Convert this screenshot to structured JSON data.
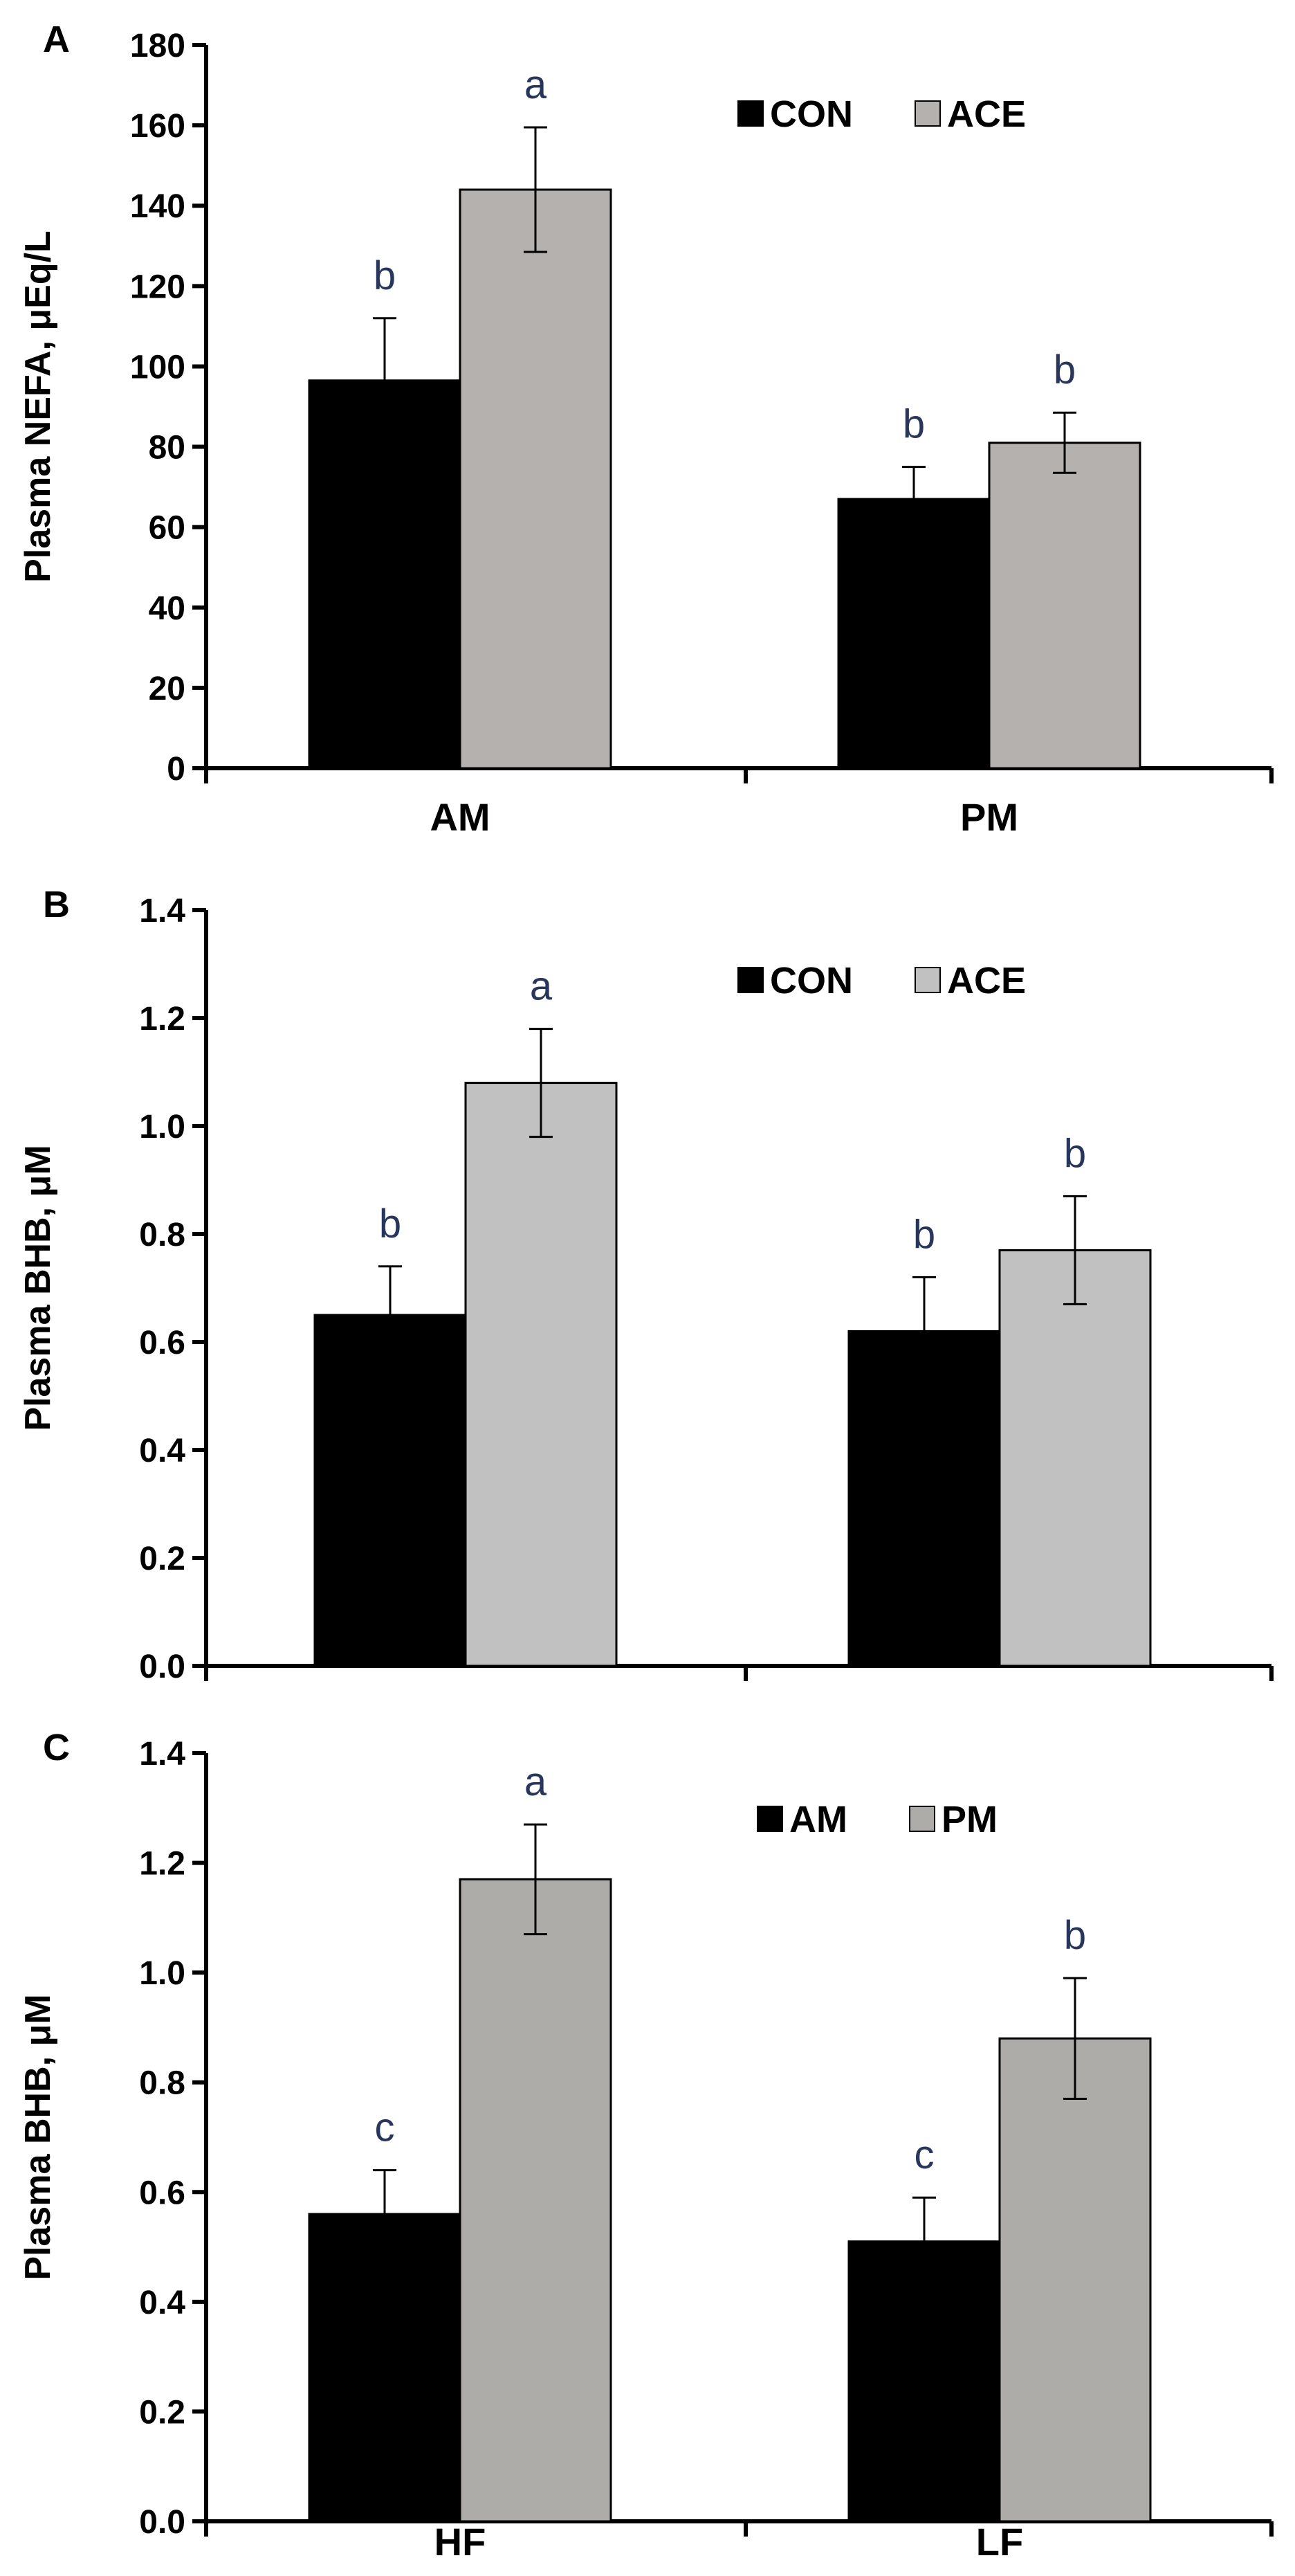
{
  "chart_data": [
    {
      "type": "bar",
      "panel": "A",
      "ylabel": "Plasma NEFA, μEq/L",
      "ylim": [
        0,
        180
      ],
      "yticks": [
        0,
        20,
        40,
        60,
        80,
        100,
        120,
        140,
        160,
        180
      ],
      "ytick_labels": [
        "0",
        "20",
        "40",
        "60",
        "80",
        "100",
        "120",
        "140",
        "160",
        "180"
      ],
      "categories": [
        "AM",
        "PM"
      ],
      "show_categories": true,
      "series": [
        {
          "name": "CON",
          "color": "#000000",
          "values": [
            96.5,
            67
          ],
          "errors": [
            15.5,
            8
          ],
          "labels": [
            "b",
            "b"
          ]
        },
        {
          "name": "ACE",
          "color": "#b4b1ae",
          "values": [
            144,
            81
          ],
          "errors": [
            15.5,
            7.5
          ],
          "labels": [
            "a",
            "b"
          ]
        }
      ],
      "legend": "top-right",
      "grid": false
    },
    {
      "type": "bar",
      "panel": "B",
      "ylabel": "Plasma BHB, μM",
      "ylim": [
        0,
        1.4
      ],
      "yticks": [
        0,
        0.2,
        0.4,
        0.6,
        0.8,
        1.0,
        1.2,
        1.4
      ],
      "ytick_labels": [
        "0.0",
        "0.2",
        "0.4",
        "0.6",
        "0.8",
        "1.0",
        "1.2",
        "1.4"
      ],
      "categories": [
        "",
        ""
      ],
      "show_categories": false,
      "series": [
        {
          "name": "CON",
          "color": "#000000",
          "values": [
            0.65,
            0.62
          ],
          "errors": [
            0.09,
            0.1
          ],
          "labels": [
            "b",
            "b"
          ]
        },
        {
          "name": "ACE",
          "color": "#c1c1c1",
          "values": [
            1.08,
            0.77
          ],
          "errors": [
            0.1,
            0.1
          ],
          "labels": [
            "a",
            "b"
          ]
        }
      ],
      "legend": "top-right",
      "grid": false
    },
    {
      "type": "bar",
      "panel": "C",
      "ylabel": "Plasma BHB, μM",
      "ylim": [
        0,
        1.4
      ],
      "yticks": [
        0,
        0.2,
        0.4,
        0.6,
        0.8,
        1.0,
        1.2,
        1.4
      ],
      "ytick_labels": [
        "0.0",
        "0.2",
        "0.4",
        "0.6",
        "0.8",
        "1.0",
        "1.2",
        "1.4"
      ],
      "categories": [
        "HF",
        "LF"
      ],
      "show_categories": true,
      "series": [
        {
          "name": "AM",
          "color": "#000000",
          "values": [
            0.56,
            0.51
          ],
          "errors": [
            0.08,
            0.08
          ],
          "labels": [
            "c",
            "c"
          ]
        },
        {
          "name": "PM",
          "color": "#aeaca9",
          "values": [
            1.17,
            0.88
          ],
          "errors": [
            0.1,
            0.11
          ],
          "labels": [
            "a",
            "b"
          ]
        }
      ],
      "legend": "top-right",
      "grid": false
    }
  ]
}
